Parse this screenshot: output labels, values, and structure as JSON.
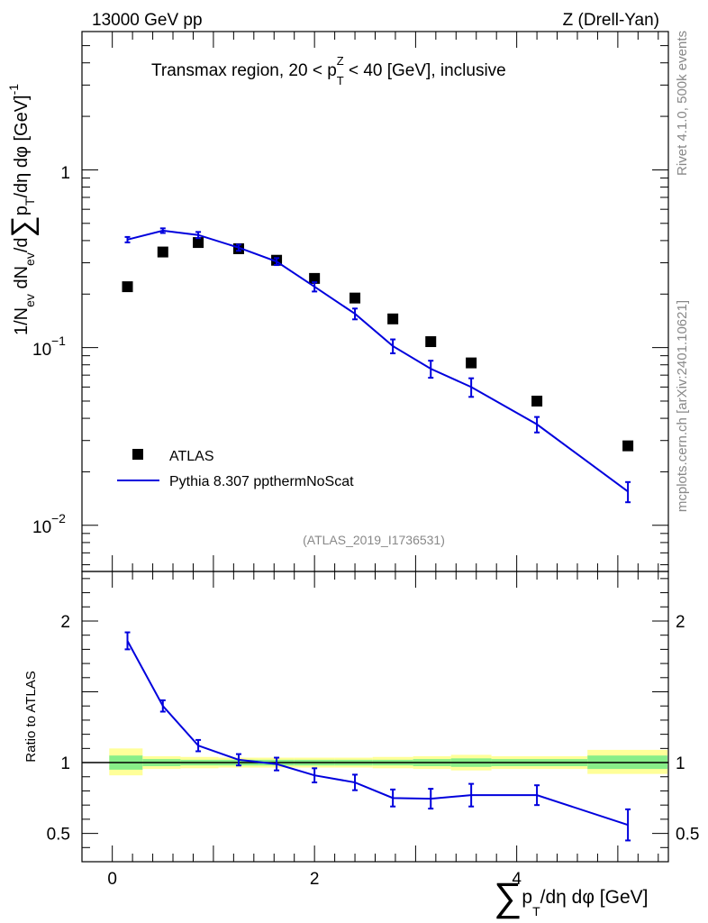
{
  "header": {
    "left": "13000 GeV pp",
    "right": "Z (Drell-Yan)"
  },
  "side_labels": {
    "rivet": "Rivet 4.1.0,  500k events",
    "mcplots": "mcplots.cern.ch [arXiv:2401.10621]"
  },
  "chart_data": [
    {
      "type": "line",
      "panel": "main",
      "title": "Transmax region, 20 < p_T^Z < 40 [GeV], inclusive",
      "title_parts": {
        "pre": "Transmax region, 20 < p",
        "sub": "T",
        "sup": "Z",
        "post": " < 40 [GeV], inclusive"
      },
      "ylabel": "1/N_ev dN_ev/d∑p_T/dη dφ [GeV]^-1",
      "ylabel_parts": {
        "a": "1/N",
        "a_sub": "ev",
        "b": " dN",
        "b_sub": "ev",
        "c": "/d",
        "sum": "∑",
        "d": "p",
        "d_sub": "T",
        "e": "/dη dφ  [GeV]",
        "e_sup": "-1"
      },
      "yscale": "log",
      "xlim": [
        -0.3,
        5.5
      ],
      "ylim": [
        0.0055,
        6.0
      ],
      "yticks": [
        {
          "value": 1,
          "label": "1"
        },
        {
          "value": 0.1,
          "base": "10",
          "exp": "−1"
        },
        {
          "value": 0.01,
          "base": "10",
          "exp": "−2"
        }
      ],
      "watermark": "(ATLAS_2019_I1736531)",
      "legend": {
        "position": "lower-left",
        "entries": [
          "ATLAS",
          "Pythia 8.307 ppthermNoScat"
        ]
      },
      "series": [
        {
          "name": "ATLAS",
          "style": "marker-square",
          "color": "#000000",
          "x": [
            0.15,
            0.5,
            0.85,
            1.25,
            1.625,
            2.0,
            2.4,
            2.775,
            3.15,
            3.55,
            4.2,
            5.1
          ],
          "y": [
            0.22,
            0.345,
            0.39,
            0.36,
            0.31,
            0.245,
            0.19,
            0.145,
            0.108,
            0.082,
            0.05,
            0.028
          ]
        },
        {
          "name": "Pythia 8.307 ppthermNoScat",
          "style": "line-errorbars",
          "color": "#0000dd",
          "x": [
            0.15,
            0.5,
            0.85,
            1.25,
            1.625,
            2.0,
            2.4,
            2.775,
            3.15,
            3.55,
            4.2,
            5.1
          ],
          "y": [
            0.405,
            0.455,
            0.43,
            0.365,
            0.305,
            0.22,
            0.155,
            0.102,
            0.076,
            0.06,
            0.037,
            0.0155
          ],
          "err_rel": [
            0.035,
            0.03,
            0.04,
            0.04,
            0.045,
            0.06,
            0.07,
            0.09,
            0.11,
            0.12,
            0.1,
            0.13
          ]
        }
      ]
    },
    {
      "type": "line",
      "panel": "ratio",
      "ylabel": "Ratio to ATLAS",
      "xlabel": "∑p_T/dη dφ [GeV]",
      "xlabel_parts": {
        "sum": "∑",
        "p": "p",
        "sub": "T",
        "rest": "/dη dφ [GeV]"
      },
      "xlim": [
        -0.3,
        5.5
      ],
      "ylim": [
        0.3,
        2.35
      ],
      "xticks": [
        0,
        2,
        4
      ],
      "yticks": [
        0.5,
        1,
        2
      ],
      "reference": 1.0,
      "bands": [
        {
          "x0": -0.03,
          "x1": 0.3,
          "outer": [
            0.91,
            1.1
          ],
          "inner": [
            0.95,
            1.05
          ]
        },
        {
          "x0": 0.3,
          "x1": 0.675,
          "outer": [
            0.955,
            1.045
          ],
          "inner": [
            0.975,
            1.025
          ]
        },
        {
          "x0": 0.675,
          "x1": 1.05,
          "outer": [
            0.96,
            1.04
          ],
          "inner": [
            0.98,
            1.02
          ]
        },
        {
          "x0": 1.05,
          "x1": 1.45,
          "outer": [
            0.965,
            1.035
          ],
          "inner": [
            0.98,
            1.02
          ]
        },
        {
          "x0": 1.45,
          "x1": 1.8,
          "outer": [
            0.965,
            1.035
          ],
          "inner": [
            0.98,
            1.02
          ]
        },
        {
          "x0": 1.8,
          "x1": 2.2,
          "outer": [
            0.965,
            1.035
          ],
          "inner": [
            0.98,
            1.02
          ]
        },
        {
          "x0": 2.2,
          "x1": 2.575,
          "outer": [
            0.965,
            1.035
          ],
          "inner": [
            0.98,
            1.02
          ]
        },
        {
          "x0": 2.575,
          "x1": 2.975,
          "outer": [
            0.96,
            1.04
          ],
          "inner": [
            0.98,
            1.02
          ]
        },
        {
          "x0": 2.975,
          "x1": 3.35,
          "outer": [
            0.955,
            1.045
          ],
          "inner": [
            0.975,
            1.025
          ]
        },
        {
          "x0": 3.35,
          "x1": 3.75,
          "outer": [
            0.945,
            1.055
          ],
          "inner": [
            0.97,
            1.03
          ]
        },
        {
          "x0": 3.75,
          "x1": 4.7,
          "outer": [
            0.955,
            1.045
          ],
          "inner": [
            0.975,
            1.025
          ]
        },
        {
          "x0": 4.7,
          "x1": 5.5,
          "outer": [
            0.92,
            1.09
          ],
          "inner": [
            0.955,
            1.05
          ]
        }
      ],
      "series": [
        {
          "name": "Pythia 8.307 ppthermNoScat / ATLAS",
          "color": "#0000dd",
          "x": [
            0.15,
            0.5,
            0.85,
            1.25,
            1.625,
            2.0,
            2.4,
            2.775,
            3.15,
            3.55,
            4.2,
            5.1
          ],
          "y": [
            1.86,
            1.4,
            1.12,
            1.02,
            0.99,
            0.91,
            0.86,
            0.75,
            0.745,
            0.77,
            0.77,
            0.56
          ],
          "err": [
            0.06,
            0.04,
            0.04,
            0.04,
            0.045,
            0.05,
            0.055,
            0.06,
            0.07,
            0.08,
            0.07,
            0.11
          ]
        }
      ]
    }
  ]
}
